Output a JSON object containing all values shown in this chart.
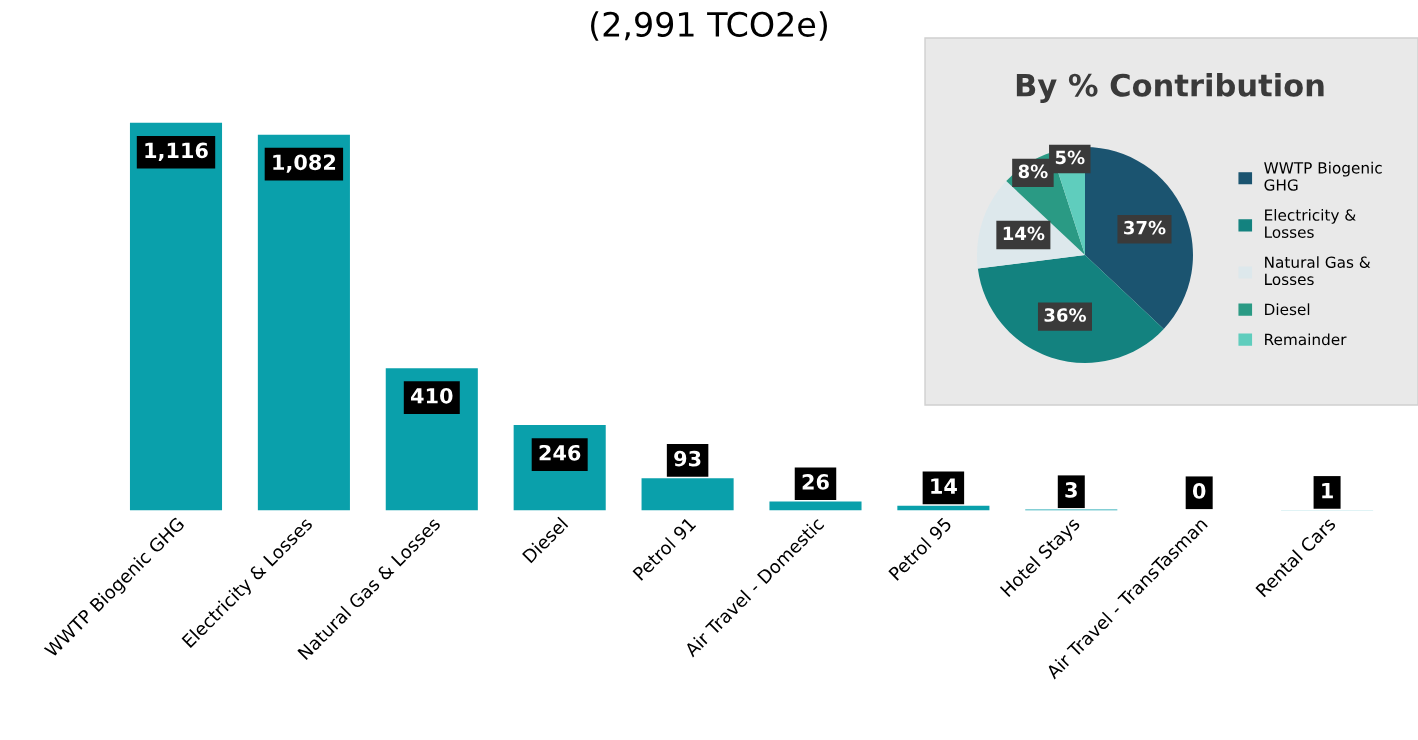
{
  "chart_data": [
    {
      "type": "bar",
      "title": "(2,991 TCO2e)",
      "categories": [
        "WWTP Biogenic GHG",
        "Electricity & Losses",
        "Natural Gas & Losses",
        "Diesel",
        "Petrol 91",
        "Air Travel - Domestic",
        "Petrol 95",
        "Hotel Stays",
        "Air Travel - TransTasman",
        "Rental Cars"
      ],
      "values": [
        1116,
        1082,
        410,
        246,
        93,
        26,
        14,
        3,
        0,
        1
      ],
      "color": "#0aa0ab",
      "value_labels": [
        "1,116",
        "1,082",
        "410",
        "246",
        "93",
        "26",
        "14",
        "3",
        "0",
        "1"
      ],
      "grid": false,
      "legend": false
    },
    {
      "type": "pie",
      "title": "By % Contribution",
      "categories": [
        "WWTP Biogenic GHG",
        "Electricity & Losses",
        "Natural Gas & Losses",
        "Diesel",
        "Remainder"
      ],
      "values": [
        37,
        36,
        14,
        8,
        5
      ],
      "colors": [
        "#1b5470",
        "#13827f",
        "#dde8ec",
        "#2a9a84",
        "#5fcdbd"
      ],
      "value_labels": [
        "37%",
        "36%",
        "14%",
        "8%",
        "5%"
      ],
      "legend": "right"
    }
  ]
}
